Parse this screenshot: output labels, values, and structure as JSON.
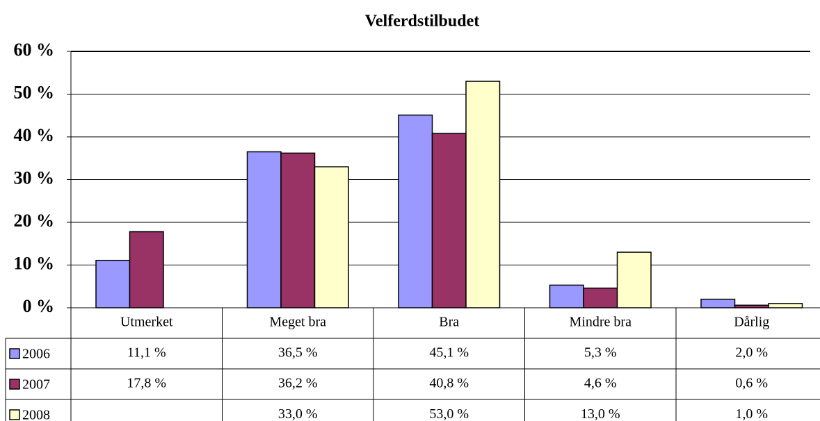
{
  "chart_data": {
    "type": "bar",
    "title": "Velferdstilbudet",
    "categories": [
      "Utmerket",
      "Meget bra",
      "Bra",
      "Mindre bra",
      "Dårlig"
    ],
    "series": [
      {
        "name": "2006",
        "color": "#9999ff",
        "values": [
          11.1,
          36.5,
          45.1,
          5.3,
          2.0
        ],
        "value_labels": [
          "11,1 %",
          "36,5 %",
          "45,1 %",
          "5,3 %",
          "2,0 %"
        ]
      },
      {
        "name": "2007",
        "color": "#993366",
        "values": [
          17.8,
          36.2,
          40.8,
          4.6,
          0.6
        ],
        "value_labels": [
          "17,8 %",
          "36,2 %",
          "40,8 %",
          "4,6 %",
          "0,6 %"
        ]
      },
      {
        "name": "2008",
        "color": "#ffffcc",
        "values": [
          null,
          33.0,
          53.0,
          13.0,
          1.0
        ],
        "value_labels": [
          null,
          "33,0 %",
          "53,0 %",
          "13,0 %",
          "1,0 %"
        ]
      }
    ],
    "ylim": [
      0,
      60
    ],
    "yticks": [
      {
        "value": 0,
        "label": "0 %"
      },
      {
        "value": 10,
        "label": "10 %"
      },
      {
        "value": 20,
        "label": "20 %"
      },
      {
        "value": 30,
        "label": "30 %"
      },
      {
        "value": 40,
        "label": "40 %"
      },
      {
        "value": 50,
        "label": "50 %"
      },
      {
        "value": 60,
        "label": "60 %"
      }
    ],
    "grid": true
  }
}
